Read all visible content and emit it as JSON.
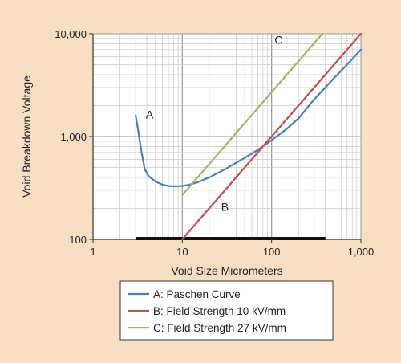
{
  "chart_data": {
    "type": "line",
    "xlabel": "Void Size Micrometers",
    "ylabel": "Void Breakdown Voltage",
    "xscale": "log",
    "yscale": "log",
    "xlim": [
      1,
      1000
    ],
    "ylim": [
      100,
      10000
    ],
    "grid": true,
    "legend_position": "bottom",
    "x_ticks": [
      {
        "value": 1,
        "label": "1"
      },
      {
        "value": 10,
        "label": "10"
      },
      {
        "value": 100,
        "label": "100"
      },
      {
        "value": 1000,
        "label": "1,000"
      }
    ],
    "y_ticks": [
      {
        "value": 100,
        "label": "100"
      },
      {
        "value": 1000,
        "label": "1,000"
      },
      {
        "value": 10000,
        "label": "10,000"
      }
    ],
    "series": [
      {
        "name": "A: Paschen Curve",
        "tag": "A",
        "tag_at": [
          4.3,
          1500
        ],
        "color": "#4a7ebb",
        "points": [
          [
            3.0,
            1600
          ],
          [
            3.2,
            1150
          ],
          [
            3.5,
            700
          ],
          [
            3.8,
            480
          ],
          [
            4.2,
            410
          ],
          [
            5,
            365
          ],
          [
            6,
            340
          ],
          [
            7,
            330
          ],
          [
            8,
            328
          ],
          [
            10,
            330
          ],
          [
            12,
            340
          ],
          [
            15,
            360
          ],
          [
            20,
            400
          ],
          [
            30,
            480
          ],
          [
            50,
            620
          ],
          [
            70,
            740
          ],
          [
            100,
            920
          ],
          [
            150,
            1200
          ],
          [
            200,
            1500
          ],
          [
            250,
            1900
          ],
          [
            300,
            2300
          ],
          [
            400,
            3000
          ],
          [
            500,
            3700
          ],
          [
            700,
            5000
          ],
          [
            1000,
            7000
          ]
        ]
      },
      {
        "name": "B: Field Strength 10 kV/mm",
        "tag": "B",
        "tag_at": [
          30,
          190
        ],
        "color": "#c0504d",
        "points": [
          [
            10,
            100
          ],
          [
            1000,
            10000
          ]
        ]
      },
      {
        "name": "C: Field Strength 27 kV/mm",
        "tag": "C",
        "tag_at": [
          120,
          8000
        ],
        "color": "#9bbb59",
        "points": [
          [
            10,
            270
          ],
          [
            370,
            10000
          ]
        ]
      }
    ],
    "highlight_range": {
      "x": [
        3,
        400
      ],
      "color": "#111111"
    }
  }
}
